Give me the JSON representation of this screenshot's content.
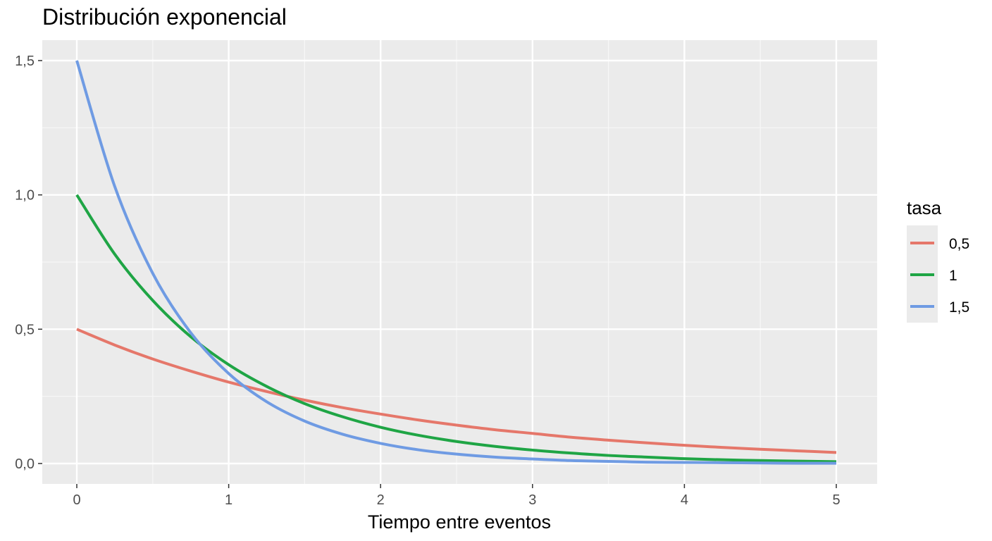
{
  "chart_data": {
    "type": "line",
    "title": "Distribución exponencial",
    "xlabel": "Tiempo entre eventos",
    "ylabel": "",
    "xlim": [
      0,
      5
    ],
    "ylim": [
      0,
      1.5
    ],
    "x_ticks": [
      0,
      1,
      2,
      3,
      4,
      5
    ],
    "x_tick_labels": [
      "0",
      "1",
      "2",
      "3",
      "4",
      "5"
    ],
    "y_ticks": [
      0,
      0.5,
      1.0,
      1.5
    ],
    "y_tick_labels": [
      "0,0",
      "0,5",
      "1,0",
      "1,5"
    ],
    "grid": true,
    "legend": {
      "title": "tasa",
      "position": "right"
    },
    "x": [
      0,
      0.25,
      0.5,
      0.75,
      1,
      1.25,
      1.5,
      1.75,
      2,
      2.25,
      2.5,
      2.75,
      3,
      3.25,
      3.5,
      3.75,
      4,
      4.25,
      4.5,
      4.75,
      5
    ],
    "series": [
      {
        "name": "0,5",
        "color": "#e5776a",
        "values": [
          0.5,
          0.441,
          0.389,
          0.344,
          0.303,
          0.268,
          0.236,
          0.208,
          0.184,
          0.162,
          0.143,
          0.126,
          0.112,
          0.098,
          0.087,
          0.077,
          0.068,
          0.06,
          0.053,
          0.047,
          0.041
        ]
      },
      {
        "name": "1",
        "color": "#1fa545",
        "values": [
          1.0,
          0.779,
          0.607,
          0.472,
          0.368,
          0.287,
          0.223,
          0.174,
          0.135,
          0.105,
          0.082,
          0.064,
          0.05,
          0.039,
          0.03,
          0.024,
          0.018,
          0.014,
          0.011,
          0.009,
          0.007
        ]
      },
      {
        "name": "1,5",
        "color": "#6f9be3",
        "values": [
          1.5,
          1.031,
          0.708,
          0.487,
          0.335,
          0.23,
          0.158,
          0.109,
          0.075,
          0.051,
          0.035,
          0.024,
          0.017,
          0.011,
          0.008,
          0.005,
          0.004,
          0.003,
          0.002,
          0.001,
          0.001
        ]
      }
    ]
  }
}
